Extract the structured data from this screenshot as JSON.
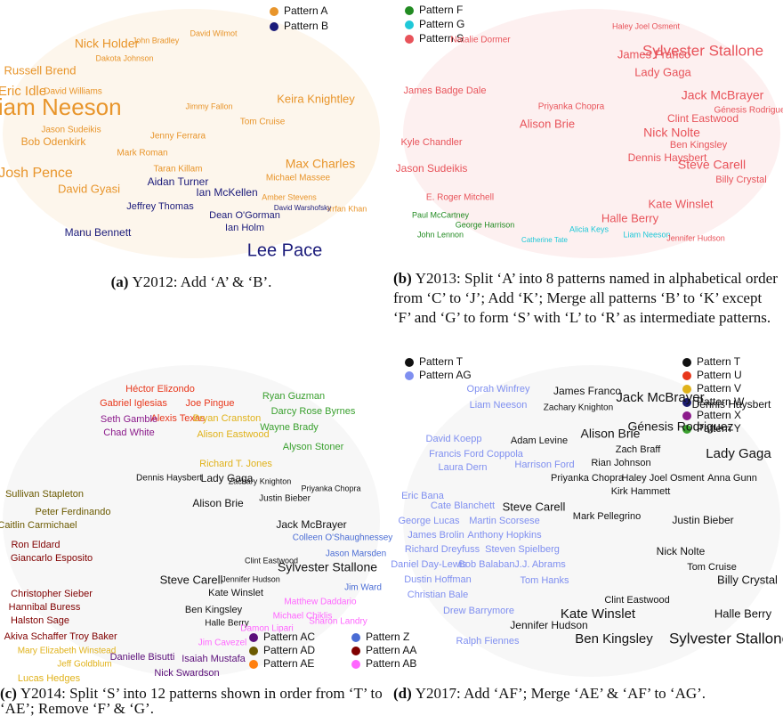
{
  "panels": [
    {
      "caption": {
        "label": "(a)",
        "text": "Y2012: Add ‘A’ & ‘B’."
      },
      "patterns": [
        {
          "name": "Pattern A",
          "color": "#e8952b",
          "words": [
            "Nick Holder",
            "Liam Neeson",
            "Russell Brend",
            "Eric Idle",
            "David Williams",
            "Keira Knightley",
            "Max Charles",
            "Josh Pence",
            "David Gyasi",
            "Bob Odenkirk",
            "Jason Sudeikis",
            "Jenny Ferrara",
            "Taran Killam",
            "Mark Roman",
            "Michael Massee",
            "Tom Cruise",
            "Amber Stevens",
            "Irrfan Khan",
            "Jimmy Fallon",
            "Dakota Johnson",
            "John Bradley",
            "David Wilmot"
          ]
        },
        {
          "name": "Pattern B",
          "color": "#1b1b7a",
          "words": [
            "Lee Pace",
            "Ian McKellen",
            "Aidan Turner",
            "Jeffrey Thomas",
            "Dean O'Gorman",
            "Ian Holm",
            "Manu Bennett",
            "David Warshofsky"
          ]
        }
      ]
    },
    {
      "caption": {
        "label": "(b)",
        "text": "Y2013: Split ‘A’ into 8 patterns named in alphabetical order from ‘C’ to ‘J’; Add ‘K’; Merge all patterns ‘B’ to ‘K’ except ‘F’ and ‘G’ to form ‘S’ with ‘L’ to ‘R’ as intermediate patterns."
      },
      "patterns": [
        {
          "name": "Pattern F",
          "color": "#228b22",
          "words": [
            "Paul McCartney",
            "John Lennon",
            "George Harrison"
          ]
        },
        {
          "name": "Pattern G",
          "color": "#1fc8d8",
          "words": [
            "Alicia Keys",
            "Liam Neeson",
            "Catherine Tate"
          ]
        },
        {
          "name": "Pattern S",
          "color": "#e8535a",
          "words": [
            "Sylvester Stallone",
            "James Franco",
            "Lady Gaga",
            "Jack McBrayer",
            "Génesis Rodriguez",
            "Clint Eastwood",
            "Nick Nolte",
            "Ben Kingsley",
            "Dennis Haysbert",
            "Steve Carell",
            "Billy Crystal",
            "Kate Winslet",
            "Halle Berry",
            "James Badge Dale",
            "Kyle Chandler",
            "Jason Sudeikis",
            "Alison Brie",
            "Priyanka Chopra",
            "E. Roger Mitchell",
            "Natalie Dormer",
            "Jennifer Hudson",
            "Haley Joel Osment"
          ]
        }
      ]
    },
    {
      "caption": {
        "label": "(c)",
        "text": "Y2014: Split ‘S’ into 12 patterns shown in order from ‘T’ to ‘AE’; Remove ‘F’ & ‘G’."
      },
      "patterns": [
        {
          "name": "Pattern T",
          "color": "#111111",
          "words": [
            "Sylvester Stallone",
            "Jack McBrayer",
            "Lady Gaga",
            "Steve Carell",
            "Kate Winslet",
            "Ben Kingsley",
            "Alison Brie",
            "Justin Bieber",
            "Dennis Haysbert",
            "Zachary Knighton",
            "Priyanka Chopra",
            "Halle Berry",
            "Clint Eastwood",
            "Jennifer Hudson"
          ]
        },
        {
          "name": "Pattern U",
          "color": "#e8371b",
          "words": [
            "Héctor Elizondo",
            "Gabriel Iglesias",
            "Joe Pingue",
            "Alexis Texas"
          ]
        },
        {
          "name": "Pattern V",
          "color": "#e0b21a",
          "words": [
            "Bryan Cranston",
            "Alison Eastwood",
            "Richard T. Jones",
            "Mary Elizabeth Winstead",
            "Jeff Goldblum",
            "Lucas Hedges"
          ]
        },
        {
          "name": "Pattern W",
          "color": "#1a1a6e",
          "words": []
        },
        {
          "name": "Pattern X",
          "color": "#8b1a8b",
          "words": [
            "Seth Gamble",
            "Chad White"
          ]
        },
        {
          "name": "Pattern Y",
          "color": "#3aa02f",
          "words": [
            "Ryan Guzman",
            "Darcy Rose Byrnes",
            "Wayne Brady",
            "Alyson Stoner"
          ]
        },
        {
          "name": "Pattern Z",
          "color": "#4a6cd4",
          "words": [
            "Colleen O'Shaughnessey",
            "Jason Marsden",
            "Jim Ward"
          ]
        },
        {
          "name": "Pattern AA",
          "color": "#800000",
          "words": [
            "Ron Eldard",
            "Giancarlo Esposito",
            "Christopher Sieber",
            "Hannibal Buress",
            "Halston Sage",
            "Akiva Schaffer",
            "Troy Baker"
          ]
        },
        {
          "name": "Pattern AB",
          "color": "#ff66ff",
          "words": [
            "Matthew Daddario",
            "Michael Chiklis",
            "Sharon Landry",
            "Damon Lipari",
            "Jim Cavezel"
          ]
        },
        {
          "name": "Pattern AC",
          "color": "#5b0f7a",
          "words": [
            "Danielle Bisutti",
            "Isaiah Mustafa",
            "Nick Swardson"
          ]
        },
        {
          "name": "Pattern AD",
          "color": "#6b5a00",
          "words": [
            "Sullivan Stapleton",
            "Peter Ferdinando",
            "Caitlin Carmichael"
          ]
        },
        {
          "name": "Pattern AE",
          "color": "#ff7f0e",
          "words": []
        }
      ]
    },
    {
      "caption": {
        "label": "(d)",
        "text": "Y2017: Add ‘AF’; Merge ‘AE’ & ‘AF’ to ‘AG’."
      },
      "patterns": [
        {
          "name": "Pattern T",
          "color": "#111111",
          "words": [
            "James Franco",
            "Jack McBrayer",
            "Dennis Haysbert",
            "Zachary Knighton",
            "Génesis Rodriguez",
            "Alison Brie",
            "Adam Levine",
            "Lady Gaga",
            "Zach Braff",
            "Rian Johnson",
            "Steve Carell",
            "Priyanka Chopra",
            "Haley Joel Osment",
            "Anna Gunn",
            "Kirk Hammett",
            "Mark Pellegrino",
            "Justin Bieber",
            "Billy Crystal",
            "Nick Nolte",
            "Tom Cruise",
            "Jennifer Hudson",
            "Kate Winslet",
            "Clint Eastwood",
            "Halle Berry",
            "Ben Kingsley",
            "Sylvester Stallone"
          ]
        },
        {
          "name": "Pattern AG",
          "color": "#7f8ff0",
          "words": [
            "Oprah Winfrey",
            "Liam Neeson",
            "David Koepp",
            "Francis Ford Coppola",
            "Laura Dern",
            "Harrison Ford",
            "Eric Bana",
            "Cate Blanchett",
            "George Lucas",
            "Martin Scorsese",
            "James Brolin",
            "Anthony Hopkins",
            "Richard Dreyfuss",
            "Steven Spielberg",
            "Daniel Day-Lewis",
            "Bob Balaban",
            "J.J. Abrams",
            "Dustin Hoffman",
            "Tom Hanks",
            "Christian Bale",
            "Drew Barrymore",
            "Ralph Fiennes"
          ]
        }
      ]
    }
  ]
}
